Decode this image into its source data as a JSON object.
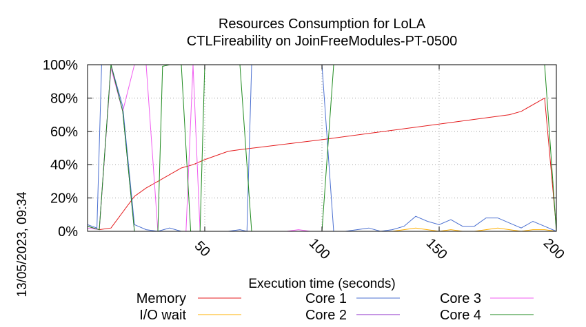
{
  "chart_data": {
    "type": "line",
    "title": "Resources Consumption for LoLA",
    "subtitle": "CTLFireability on JoinFreeModules-PT-0500",
    "xlabel": "Execution time (seconds)",
    "ylabel": "",
    "side_label": "13/05/2023, 09:34",
    "xlim": [
      0,
      200
    ],
    "ylim": [
      0,
      100
    ],
    "x_ticks": [
      50,
      100,
      150,
      200
    ],
    "y_ticks": [
      0,
      20,
      40,
      60,
      80,
      100
    ],
    "y_tick_suffix": "%",
    "grid": true,
    "legend_position": "bottom",
    "series": [
      {
        "name": "Memory",
        "color": "#e41a1c",
        "points": [
          [
            0,
            3
          ],
          [
            5,
            1
          ],
          [
            10,
            2
          ],
          [
            20,
            21
          ],
          [
            25,
            26
          ],
          [
            30,
            30
          ],
          [
            40,
            38
          ],
          [
            45,
            40
          ],
          [
            50,
            43
          ],
          [
            60,
            48
          ],
          [
            65,
            49
          ],
          [
            100,
            55
          ],
          [
            180,
            70
          ],
          [
            185,
            72
          ],
          [
            195,
            80
          ],
          [
            200,
            2
          ]
        ]
      },
      {
        "name": "I/O wait",
        "color": "#ffb000",
        "points": [
          [
            0,
            0
          ],
          [
            130,
            0
          ],
          [
            135,
            1
          ],
          [
            140,
            2
          ],
          [
            145,
            1
          ],
          [
            150,
            0
          ],
          [
            155,
            1
          ],
          [
            160,
            0
          ],
          [
            165,
            0
          ],
          [
            170,
            1
          ],
          [
            175,
            2
          ],
          [
            180,
            1
          ],
          [
            185,
            0
          ],
          [
            190,
            1
          ],
          [
            195,
            1
          ],
          [
            200,
            0
          ]
        ]
      },
      {
        "name": "Core 1",
        "color": "#4a6fd0",
        "points": [
          [
            0,
            4
          ],
          [
            4,
            2
          ],
          [
            6,
            100
          ],
          [
            10,
            100
          ],
          [
            15,
            75
          ],
          [
            20,
            4
          ],
          [
            25,
            1
          ],
          [
            30,
            0
          ],
          [
            35,
            2
          ],
          [
            40,
            0
          ],
          [
            60,
            0
          ],
          [
            65,
            1
          ],
          [
            68,
            0
          ],
          [
            70,
            100
          ],
          [
            100,
            100
          ],
          [
            105,
            0
          ],
          [
            110,
            0
          ],
          [
            120,
            2
          ],
          [
            125,
            0
          ],
          [
            130,
            1
          ],
          [
            135,
            3
          ],
          [
            140,
            9
          ],
          [
            145,
            6
          ],
          [
            150,
            4
          ],
          [
            155,
            7
          ],
          [
            160,
            3
          ],
          [
            165,
            3
          ],
          [
            170,
            8
          ],
          [
            175,
            8
          ],
          [
            180,
            5
          ],
          [
            185,
            2
          ],
          [
            190,
            6
          ],
          [
            195,
            3
          ],
          [
            200,
            0
          ]
        ]
      },
      {
        "name": "Core 2",
        "color": "#8e2ec8",
        "points": [
          [
            0,
            3
          ],
          [
            5,
            1
          ],
          [
            10,
            100
          ],
          [
            15,
            72
          ],
          [
            20,
            0
          ],
          [
            200,
            0
          ]
        ]
      },
      {
        "name": "Core 3",
        "color": "#f05bf0",
        "points": [
          [
            0,
            2
          ],
          [
            5,
            1
          ],
          [
            10,
            98
          ],
          [
            15,
            72
          ],
          [
            20,
            100
          ],
          [
            25,
            100
          ],
          [
            30,
            0
          ],
          [
            42,
            0
          ],
          [
            45,
            100
          ],
          [
            48,
            0
          ],
          [
            85,
            0
          ],
          [
            90,
            1
          ],
          [
            95,
            0
          ],
          [
            200,
            0
          ]
        ]
      },
      {
        "name": "Core 4",
        "color": "#1e8a1e",
        "points": [
          [
            0,
            3
          ],
          [
            5,
            1
          ],
          [
            10,
            100
          ],
          [
            15,
            72
          ],
          [
            20,
            0
          ],
          [
            30,
            0
          ],
          [
            32,
            99
          ],
          [
            35,
            100
          ],
          [
            40,
            100
          ],
          [
            44,
            0
          ],
          [
            48,
            0
          ],
          [
            50,
            100
          ],
          [
            65,
            100
          ],
          [
            70,
            0
          ],
          [
            100,
            0
          ],
          [
            105,
            100
          ],
          [
            195,
            100
          ],
          [
            200,
            0
          ]
        ]
      }
    ]
  }
}
